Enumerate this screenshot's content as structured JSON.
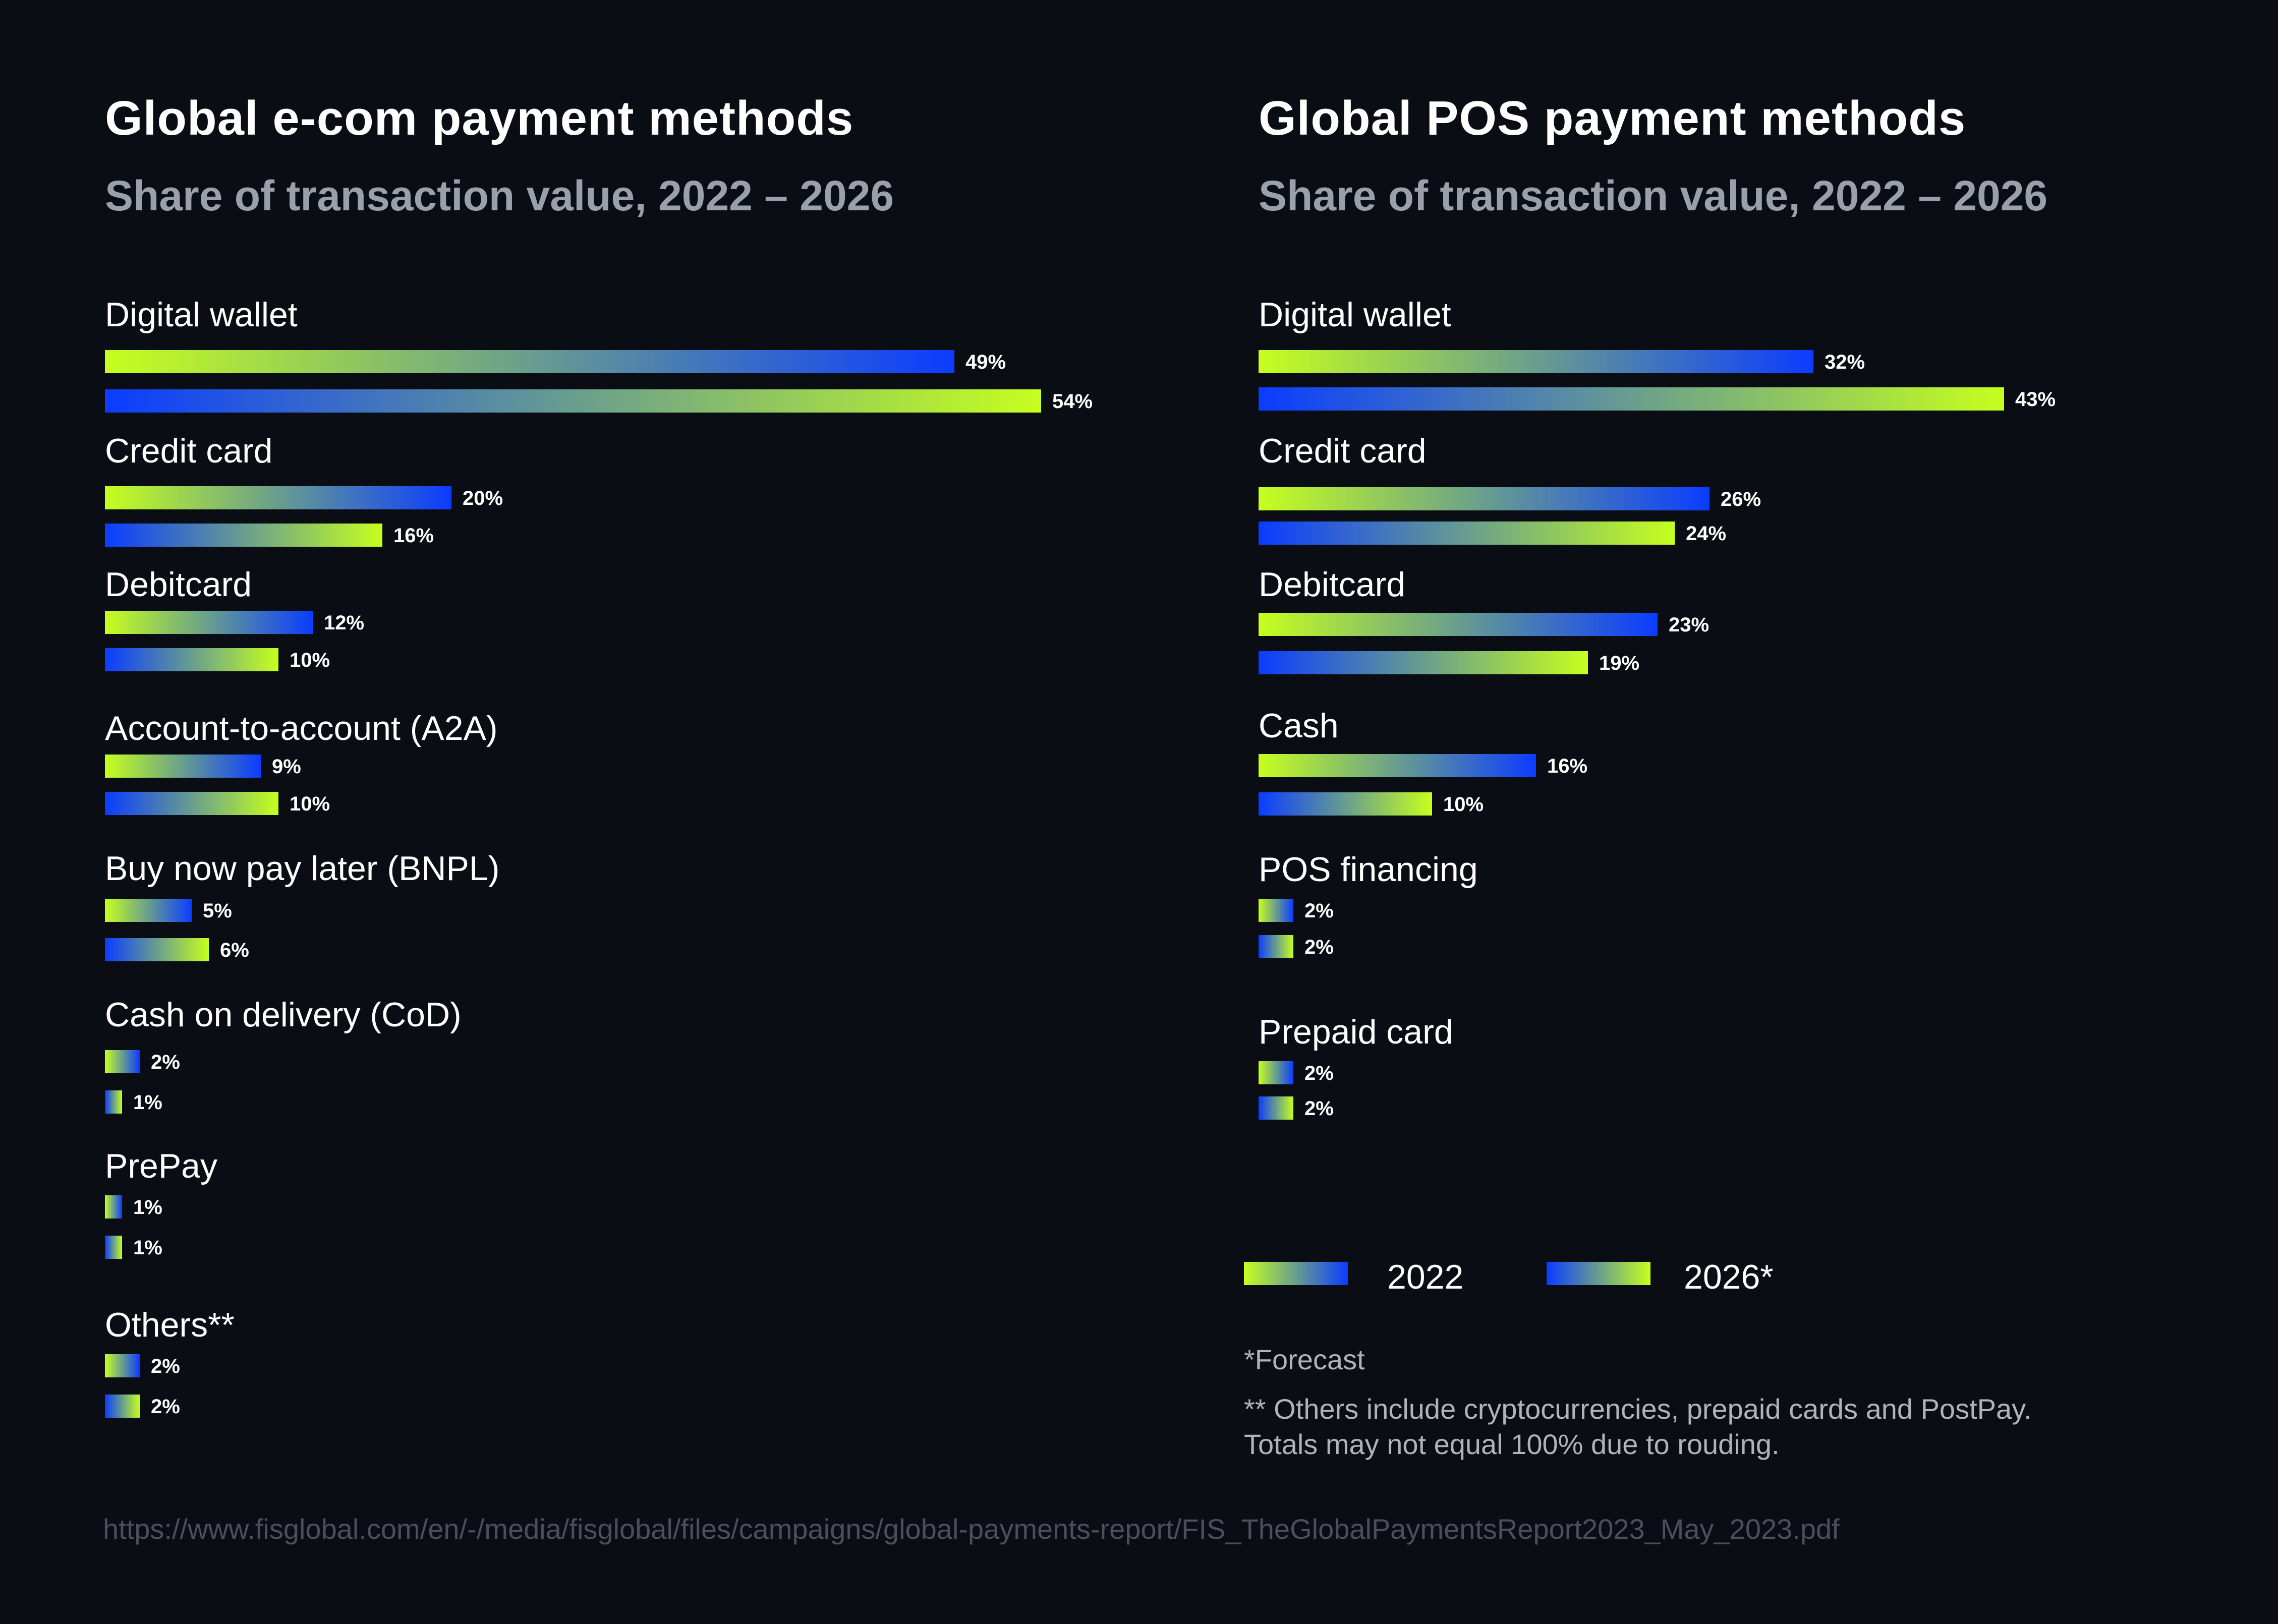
{
  "chart_data": [
    {
      "type": "bar",
      "orientation": "horizontal",
      "title": "Global e-com payment methods",
      "subtitle": "Share of transaction value, 2022 – 2026",
      "categories": [
        "Digital wallet",
        "Credit card",
        "Debitcard",
        "Account-to-account (A2A)",
        "Buy now pay later (BNPL)",
        "Cash on delivery (CoD)",
        "PrePay",
        "Others**"
      ],
      "series": [
        {
          "name": "2022",
          "values": [
            49,
            20,
            12,
            9,
            5,
            2,
            1,
            2
          ],
          "labels": [
            "49%",
            "20%",
            "12%",
            "9%",
            "5%",
            "2%",
            "1%",
            "2%"
          ]
        },
        {
          "name": "2026*",
          "values": [
            54,
            16,
            10,
            10,
            6,
            1,
            1,
            2
          ],
          "labels": [
            "54%",
            "16%",
            "10%",
            "10%",
            "6%",
            "1%",
            "1%",
            "2%"
          ]
        }
      ],
      "unit": "%",
      "xlim": [
        0,
        54
      ]
    },
    {
      "type": "bar",
      "orientation": "horizontal",
      "title": "Global POS payment methods",
      "subtitle": "Share of transaction value, 2022 – 2026",
      "categories": [
        "Digital wallet",
        "Credit card",
        "Debitcard",
        "Cash",
        "POS financing",
        "Prepaid card"
      ],
      "series": [
        {
          "name": "2022",
          "values": [
            32,
            26,
            23,
            16,
            2,
            2
          ],
          "labels": [
            "32%",
            "26%",
            "23%",
            "16%",
            "2%",
            "2%"
          ]
        },
        {
          "name": "2026*",
          "values": [
            43,
            24,
            19,
            10,
            2,
            2
          ],
          "labels": [
            "43%",
            "24%",
            "19%",
            "10%",
            "2%",
            "2%"
          ]
        }
      ],
      "unit": "%",
      "xlim": [
        0,
        54
      ]
    }
  ],
  "legend": {
    "items": [
      "2022",
      "2026*"
    ],
    "colors": {
      "lime": "#c6ff1e",
      "blue": "#0b3cff"
    }
  },
  "footnotes": {
    "forecast": "*Forecast",
    "others": "** Others include cryptocurrencies, prepaid cards and PostPay.",
    "totals": "Totals may not equal 100% due to rouding."
  },
  "source": "https://www.fisglobal.com/en/-/media/fisglobal/files/campaigns/global-payments-report/FIS_TheGlobalPaymentsReport2023_May_2023.pdf"
}
